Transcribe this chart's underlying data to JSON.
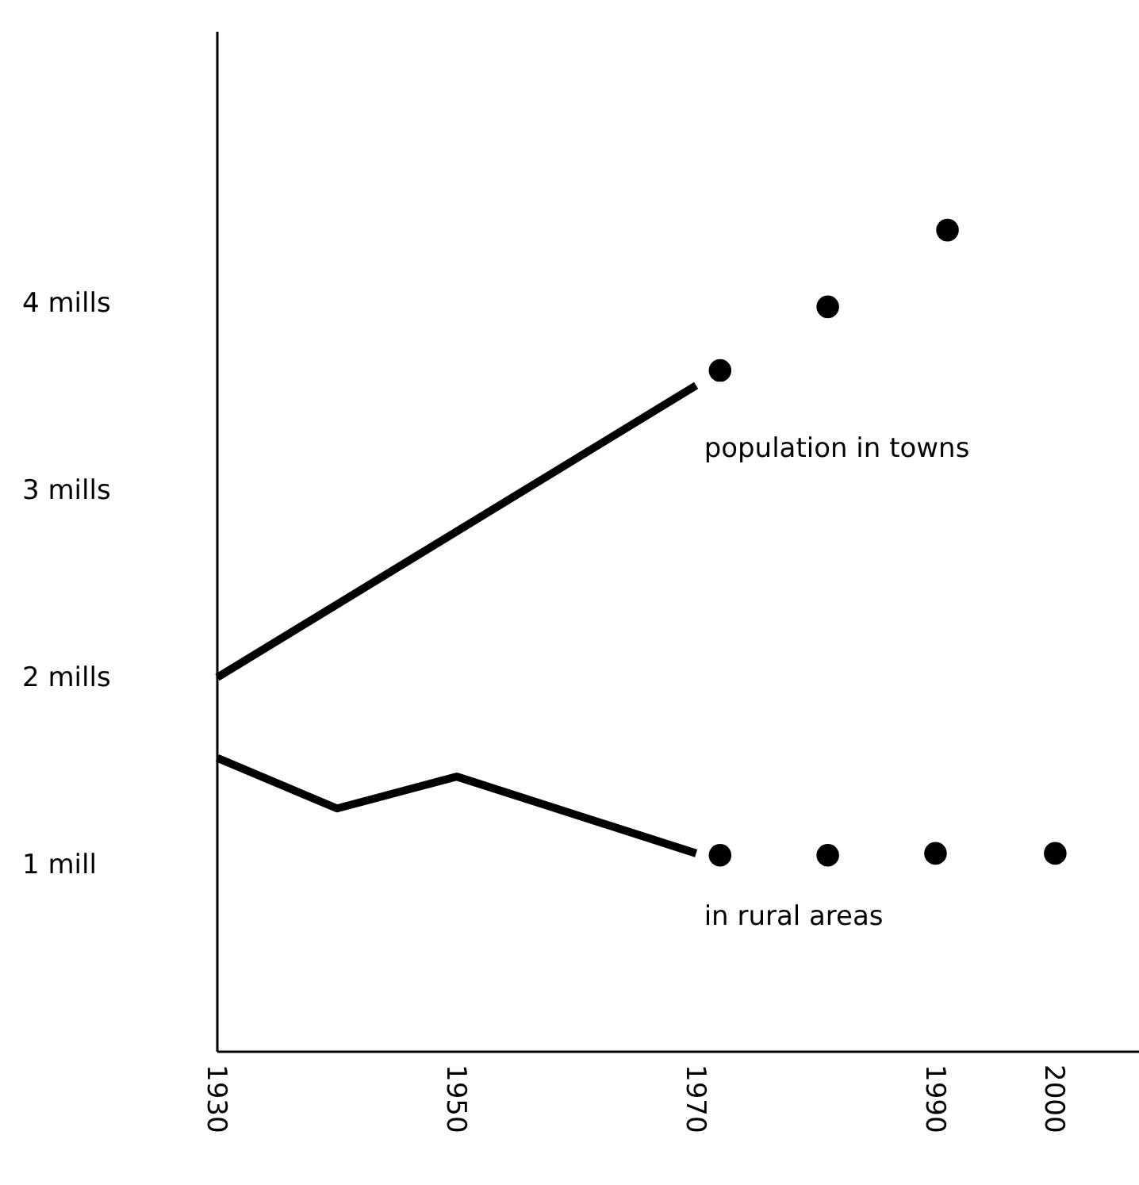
{
  "chart_data": {
    "type": "line",
    "xlim": [
      1930,
      2007
    ],
    "ylim": [
      0,
      5.45
    ],
    "xticks": [
      1930,
      1950,
      1970,
      1990,
      2000
    ],
    "yticks": [
      {
        "value": 1,
        "label": "1 mill"
      },
      {
        "value": 2,
        "label": "2 mills"
      },
      {
        "value": 3,
        "label": "3 mills"
      },
      {
        "value": 4,
        "label": "4 mills"
      }
    ],
    "grid": false,
    "line_style": "solid",
    "series": [
      {
        "name": "population in towns",
        "color": "#000000",
        "marker": "none",
        "x": [
          1930,
          1970
        ],
        "values": [
          2.0,
          3.56
        ]
      },
      {
        "type": "scatter",
        "color": "#000000",
        "marker": "circle",
        "x": [
          1972,
          1981,
          1991
        ],
        "values": [
          3.64,
          3.98,
          4.39
        ]
      },
      {
        "name": "in rural areas",
        "color": "#000000",
        "marker": "none",
        "x": [
          1930,
          1940,
          1950,
          1970
        ],
        "values": [
          1.57,
          1.3,
          1.47,
          1.06
        ]
      },
      {
        "type": "scatter",
        "color": "#000000",
        "marker": "circle",
        "x": [
          1972,
          1981,
          1990,
          2000
        ],
        "values": [
          1.05,
          1.05,
          1.06,
          1.06
        ]
      }
    ]
  }
}
